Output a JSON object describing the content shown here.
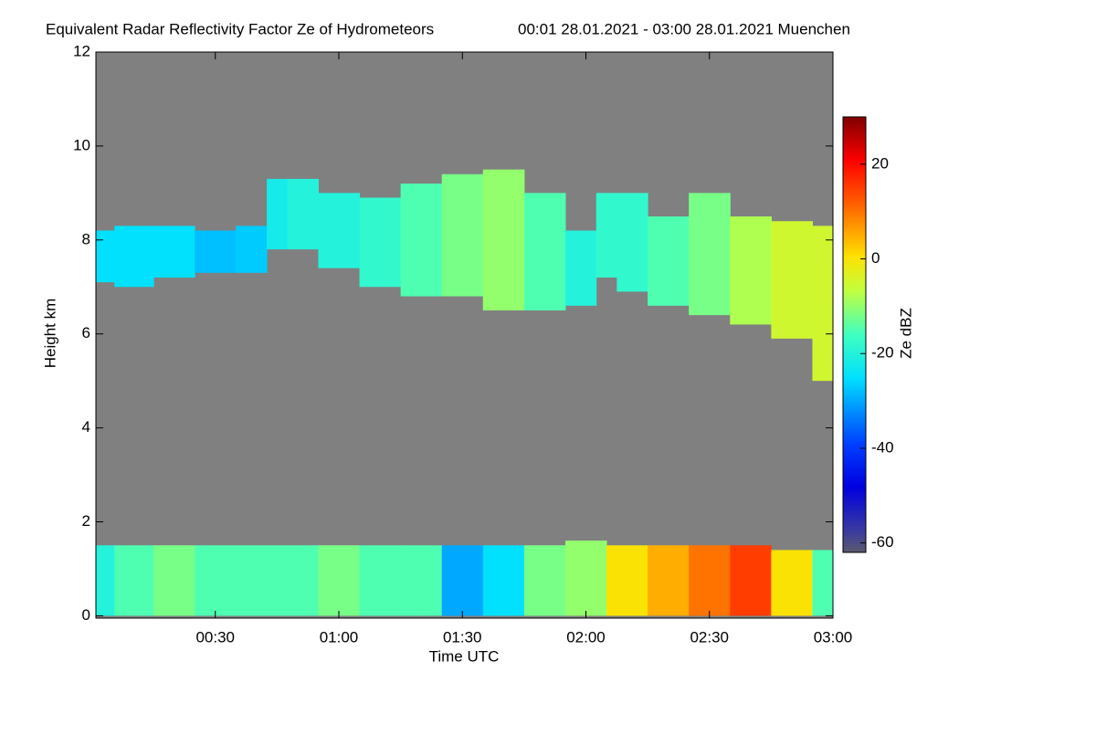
{
  "chart_data": {
    "type": "time-height",
    "title": "Equivalent Radar Reflectivity Factor Ze of Hydrometeors",
    "subtitle": "00:01 28.01.2021 - 03:00 28.01.2021 Muenchen",
    "x_label": "Time UTC",
    "y_label": "Height km",
    "colorbar_label": "Ze dBZ",
    "xlim": [
      1,
      180
    ],
    "xticks": [
      {
        "value": 30,
        "label": "00:30"
      },
      {
        "value": 60,
        "label": "01:00"
      },
      {
        "value": 90,
        "label": "01:30"
      },
      {
        "value": 120,
        "label": "02:00"
      },
      {
        "value": 150,
        "label": "02:30"
      },
      {
        "value": 180,
        "label": "03:00"
      }
    ],
    "ylim": [
      -0.05,
      12
    ],
    "yticks": [
      0,
      2,
      4,
      6,
      8,
      10,
      12
    ],
    "zlim": [
      -62,
      30
    ],
    "zticks": [
      -60,
      -40,
      -20,
      0,
      20
    ],
    "colormap": "jet",
    "background": "#808080",
    "layers": [
      {
        "x": [
          1,
          10,
          20,
          30,
          40,
          45,
          50,
          60,
          70,
          80,
          90,
          100,
          110,
          120,
          125,
          130,
          140,
          150,
          160,
          170,
          180
        ],
        "top": [
          8.2,
          8.3,
          8.3,
          8.2,
          8.3,
          9.3,
          9.3,
          9.0,
          8.9,
          9.2,
          9.4,
          9.5,
          9.0,
          8.2,
          9.0,
          9.0,
          8.5,
          9.0,
          8.5,
          8.4,
          8.3
        ],
        "base": [
          7.1,
          7.0,
          7.2,
          7.3,
          7.3,
          7.8,
          7.8,
          7.4,
          7.0,
          6.8,
          6.8,
          6.5,
          6.5,
          6.6,
          7.2,
          6.9,
          6.6,
          6.4,
          6.2,
          5.9,
          5.0
        ],
        "ze": [
          -25,
          -25,
          -25,
          -28,
          -27,
          -22,
          -20,
          -20,
          -18,
          -15,
          -12,
          -10,
          -15,
          -20,
          -18,
          -18,
          -15,
          -12,
          -8,
          -5,
          -5
        ]
      },
      {
        "x": [
          1,
          10,
          20,
          30,
          40,
          50,
          60,
          70,
          80,
          90,
          100,
          110,
          120,
          130,
          140,
          150,
          160,
          170,
          180
        ],
        "top": [
          1.5,
          1.5,
          1.5,
          1.5,
          1.5,
          1.5,
          1.5,
          1.5,
          1.5,
          1.5,
          1.5,
          1.5,
          1.6,
          1.5,
          1.5,
          1.5,
          1.5,
          1.4,
          1.4
        ],
        "base": [
          0,
          0,
          0,
          0,
          0,
          0,
          0,
          0,
          0,
          0,
          0,
          0,
          0,
          0,
          0,
          0,
          0,
          0,
          0
        ],
        "ze": [
          -20,
          -15,
          -12,
          -15,
          -15,
          -15,
          -12,
          -15,
          -15,
          -30,
          -25,
          -12,
          -10,
          0,
          5,
          10,
          15,
          0,
          -15
        ]
      }
    ]
  }
}
